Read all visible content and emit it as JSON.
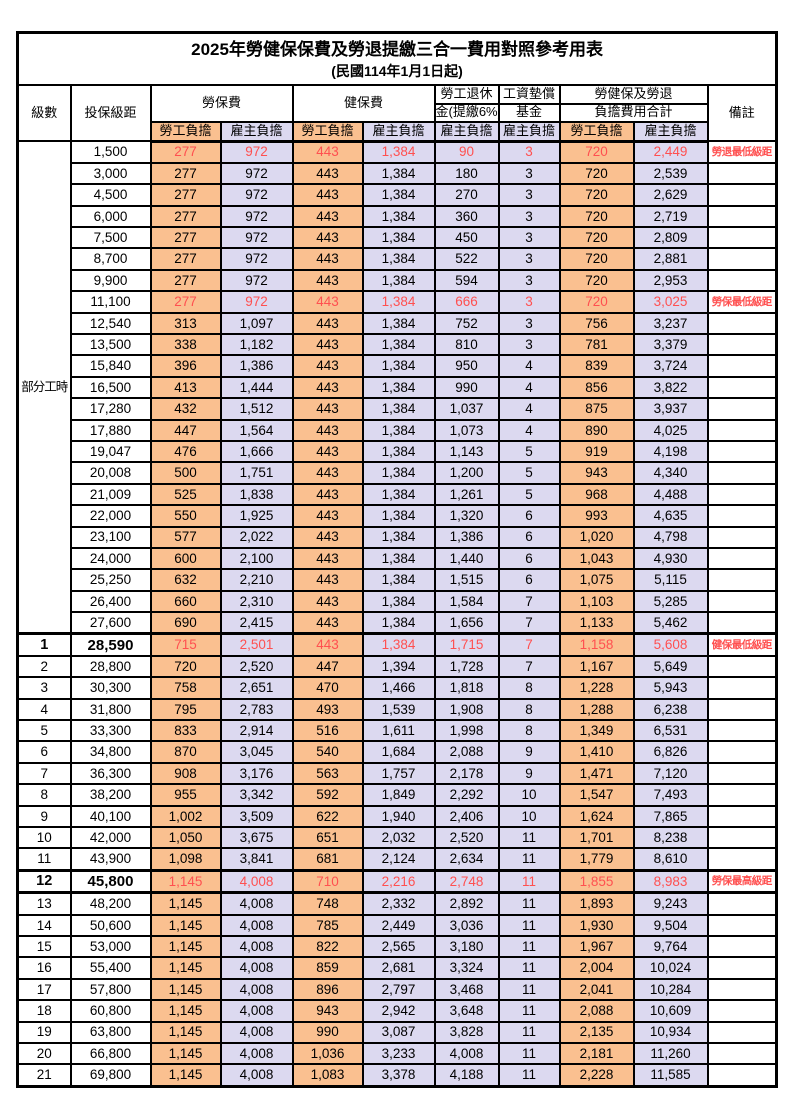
{
  "title": "2025年勞健保保費及勞退提繳三合一費用對照參考用表",
  "subtitle": "(民國114年1月1日起)",
  "header": {
    "level": "級數",
    "salary_bracket": "投保級距",
    "labor_insurance": "勞保費",
    "health_insurance": "健保費",
    "pension_line1": "勞工退休",
    "pension_line2": "金(提繳6%)",
    "wage_fund_line1": "工資墊償",
    "wage_fund_line2": "基金",
    "total_line1": "勞健保及勞退",
    "total_line2": "負擔費用合計",
    "remark": "備註",
    "employee_label": "勞工負擔",
    "employer_label": "雇主負擔"
  },
  "part_time": {
    "label": "部分工時",
    "span": 23
  },
  "colors": {
    "employee_bg": "#FAC090",
    "employer_bg": "#DCD9F0",
    "highlight_text": "#FF5050",
    "border": "#000000"
  },
  "rows": [
    {
      "level": null,
      "salary": "1,500",
      "v": [
        "277",
        "972",
        "443",
        "1,384",
        "90",
        "3",
        "720",
        "2,449"
      ],
      "remark": "勞退最低級距",
      "red": true,
      "emph": false,
      "border": null
    },
    {
      "level": null,
      "salary": "3,000",
      "v": [
        "277",
        "972",
        "443",
        "1,384",
        "180",
        "3",
        "720",
        "2,539"
      ],
      "remark": "",
      "red": false,
      "emph": false,
      "border": null
    },
    {
      "level": null,
      "salary": "4,500",
      "v": [
        "277",
        "972",
        "443",
        "1,384",
        "270",
        "3",
        "720",
        "2,629"
      ],
      "remark": "",
      "red": false,
      "emph": false,
      "border": null
    },
    {
      "level": null,
      "salary": "6,000",
      "v": [
        "277",
        "972",
        "443",
        "1,384",
        "360",
        "3",
        "720",
        "2,719"
      ],
      "remark": "",
      "red": false,
      "emph": false,
      "border": null
    },
    {
      "level": null,
      "salary": "7,500",
      "v": [
        "277",
        "972",
        "443",
        "1,384",
        "450",
        "3",
        "720",
        "2,809"
      ],
      "remark": "",
      "red": false,
      "emph": false,
      "border": null
    },
    {
      "level": null,
      "salary": "8,700",
      "v": [
        "277",
        "972",
        "443",
        "1,384",
        "522",
        "3",
        "720",
        "2,881"
      ],
      "remark": "",
      "red": false,
      "emph": false,
      "border": null
    },
    {
      "level": null,
      "salary": "9,900",
      "v": [
        "277",
        "972",
        "443",
        "1,384",
        "594",
        "3",
        "720",
        "2,953"
      ],
      "remark": "",
      "red": false,
      "emph": false,
      "border": null
    },
    {
      "level": null,
      "salary": "11,100",
      "v": [
        "277",
        "972",
        "443",
        "1,384",
        "666",
        "3",
        "720",
        "3,025"
      ],
      "remark": "勞保最低級距",
      "red": true,
      "emph": false,
      "border": null
    },
    {
      "level": null,
      "salary": "12,540",
      "v": [
        "313",
        "1,097",
        "443",
        "1,384",
        "752",
        "3",
        "756",
        "3,237"
      ],
      "remark": "",
      "red": false,
      "emph": false,
      "border": null
    },
    {
      "level": null,
      "salary": "13,500",
      "v": [
        "338",
        "1,182",
        "443",
        "1,384",
        "810",
        "3",
        "781",
        "3,379"
      ],
      "remark": "",
      "red": false,
      "emph": false,
      "border": null
    },
    {
      "level": null,
      "salary": "15,840",
      "v": [
        "396",
        "1,386",
        "443",
        "1,384",
        "950",
        "4",
        "839",
        "3,724"
      ],
      "remark": "",
      "red": false,
      "emph": false,
      "border": null
    },
    {
      "level": null,
      "salary": "16,500",
      "v": [
        "413",
        "1,444",
        "443",
        "1,384",
        "990",
        "4",
        "856",
        "3,822"
      ],
      "remark": "",
      "red": false,
      "emph": false,
      "border": null
    },
    {
      "level": null,
      "salary": "17,280",
      "v": [
        "432",
        "1,512",
        "443",
        "1,384",
        "1,037",
        "4",
        "875",
        "3,937"
      ],
      "remark": "",
      "red": false,
      "emph": false,
      "border": null
    },
    {
      "level": null,
      "salary": "17,880",
      "v": [
        "447",
        "1,564",
        "443",
        "1,384",
        "1,073",
        "4",
        "890",
        "4,025"
      ],
      "remark": "",
      "red": false,
      "emph": false,
      "border": null
    },
    {
      "level": null,
      "salary": "19,047",
      "v": [
        "476",
        "1,666",
        "443",
        "1,384",
        "1,143",
        "5",
        "919",
        "4,198"
      ],
      "remark": "",
      "red": false,
      "emph": false,
      "border": null
    },
    {
      "level": null,
      "salary": "20,008",
      "v": [
        "500",
        "1,751",
        "443",
        "1,384",
        "1,200",
        "5",
        "943",
        "4,340"
      ],
      "remark": "",
      "red": false,
      "emph": false,
      "border": null
    },
    {
      "level": null,
      "salary": "21,009",
      "v": [
        "525",
        "1,838",
        "443",
        "1,384",
        "1,261",
        "5",
        "968",
        "4,488"
      ],
      "remark": "",
      "red": false,
      "emph": false,
      "border": null
    },
    {
      "level": null,
      "salary": "22,000",
      "v": [
        "550",
        "1,925",
        "443",
        "1,384",
        "1,320",
        "6",
        "993",
        "4,635"
      ],
      "remark": "",
      "red": false,
      "emph": false,
      "border": null
    },
    {
      "level": null,
      "salary": "23,100",
      "v": [
        "577",
        "2,022",
        "443",
        "1,384",
        "1,386",
        "6",
        "1,020",
        "4,798"
      ],
      "remark": "",
      "red": false,
      "emph": false,
      "border": null
    },
    {
      "level": null,
      "salary": "24,000",
      "v": [
        "600",
        "2,100",
        "443",
        "1,384",
        "1,440",
        "6",
        "1,043",
        "4,930"
      ],
      "remark": "",
      "red": false,
      "emph": false,
      "border": null
    },
    {
      "level": null,
      "salary": "25,250",
      "v": [
        "632",
        "2,210",
        "443",
        "1,384",
        "1,515",
        "6",
        "1,075",
        "5,115"
      ],
      "remark": "",
      "red": false,
      "emph": false,
      "border": null
    },
    {
      "level": null,
      "salary": "26,400",
      "v": [
        "660",
        "2,310",
        "443",
        "1,384",
        "1,584",
        "7",
        "1,103",
        "5,285"
      ],
      "remark": "",
      "red": false,
      "emph": false,
      "border": null
    },
    {
      "level": null,
      "salary": "27,600",
      "v": [
        "690",
        "2,415",
        "443",
        "1,384",
        "1,656",
        "7",
        "1,133",
        "5,462"
      ],
      "remark": "",
      "red": false,
      "emph": false,
      "border": null
    },
    {
      "level": "1",
      "salary": "28,590",
      "v": [
        "715",
        "2,501",
        "443",
        "1,384",
        "1,715",
        "7",
        "1,158",
        "5,608"
      ],
      "remark": "健保最低級距",
      "red": true,
      "emph": true,
      "border": "top"
    },
    {
      "level": "2",
      "salary": "28,800",
      "v": [
        "720",
        "2,520",
        "447",
        "1,394",
        "1,728",
        "7",
        "1,167",
        "5,649"
      ],
      "remark": "",
      "red": false,
      "emph": false,
      "border": null
    },
    {
      "level": "3",
      "salary": "30,300",
      "v": [
        "758",
        "2,651",
        "470",
        "1,466",
        "1,818",
        "8",
        "1,228",
        "5,943"
      ],
      "remark": "",
      "red": false,
      "emph": false,
      "border": null
    },
    {
      "level": "4",
      "salary": "31,800",
      "v": [
        "795",
        "2,783",
        "493",
        "1,539",
        "1,908",
        "8",
        "1,288",
        "6,238"
      ],
      "remark": "",
      "red": false,
      "emph": false,
      "border": null
    },
    {
      "level": "5",
      "salary": "33,300",
      "v": [
        "833",
        "2,914",
        "516",
        "1,611",
        "1,998",
        "8",
        "1,349",
        "6,531"
      ],
      "remark": "",
      "red": false,
      "emph": false,
      "border": null
    },
    {
      "level": "6",
      "salary": "34,800",
      "v": [
        "870",
        "3,045",
        "540",
        "1,684",
        "2,088",
        "9",
        "1,410",
        "6,826"
      ],
      "remark": "",
      "red": false,
      "emph": false,
      "border": null
    },
    {
      "level": "7",
      "salary": "36,300",
      "v": [
        "908",
        "3,176",
        "563",
        "1,757",
        "2,178",
        "9",
        "1,471",
        "7,120"
      ],
      "remark": "",
      "red": false,
      "emph": false,
      "border": null
    },
    {
      "level": "8",
      "salary": "38,200",
      "v": [
        "955",
        "3,342",
        "592",
        "1,849",
        "2,292",
        "10",
        "1,547",
        "7,493"
      ],
      "remark": "",
      "red": false,
      "emph": false,
      "border": null
    },
    {
      "level": "9",
      "salary": "40,100",
      "v": [
        "1,002",
        "3,509",
        "622",
        "1,940",
        "2,406",
        "10",
        "1,624",
        "7,865"
      ],
      "remark": "",
      "red": false,
      "emph": false,
      "border": null
    },
    {
      "level": "10",
      "salary": "42,000",
      "v": [
        "1,050",
        "3,675",
        "651",
        "2,032",
        "2,520",
        "11",
        "1,701",
        "8,238"
      ],
      "remark": "",
      "red": false,
      "emph": false,
      "border": null
    },
    {
      "level": "11",
      "salary": "43,900",
      "v": [
        "1,098",
        "3,841",
        "681",
        "2,124",
        "2,634",
        "11",
        "1,779",
        "8,610"
      ],
      "remark": "",
      "red": false,
      "emph": false,
      "border": null
    },
    {
      "level": "12",
      "salary": "45,800",
      "v": [
        "1,145",
        "4,008",
        "710",
        "2,216",
        "2,748",
        "11",
        "1,855",
        "8,983"
      ],
      "remark": "勞保最高級距",
      "red": true,
      "emph": true,
      "border": "both"
    },
    {
      "level": "13",
      "salary": "48,200",
      "v": [
        "1,145",
        "4,008",
        "748",
        "2,332",
        "2,892",
        "11",
        "1,893",
        "9,243"
      ],
      "remark": "",
      "red": false,
      "emph": false,
      "border": null
    },
    {
      "level": "14",
      "salary": "50,600",
      "v": [
        "1,145",
        "4,008",
        "785",
        "2,449",
        "3,036",
        "11",
        "1,930",
        "9,504"
      ],
      "remark": "",
      "red": false,
      "emph": false,
      "border": null
    },
    {
      "level": "15",
      "salary": "53,000",
      "v": [
        "1,145",
        "4,008",
        "822",
        "2,565",
        "3,180",
        "11",
        "1,967",
        "9,764"
      ],
      "remark": "",
      "red": false,
      "emph": false,
      "border": null
    },
    {
      "level": "16",
      "salary": "55,400",
      "v": [
        "1,145",
        "4,008",
        "859",
        "2,681",
        "3,324",
        "11",
        "2,004",
        "10,024"
      ],
      "remark": "",
      "red": false,
      "emph": false,
      "border": null
    },
    {
      "level": "17",
      "salary": "57,800",
      "v": [
        "1,145",
        "4,008",
        "896",
        "2,797",
        "3,468",
        "11",
        "2,041",
        "10,284"
      ],
      "remark": "",
      "red": false,
      "emph": false,
      "border": null
    },
    {
      "level": "18",
      "salary": "60,800",
      "v": [
        "1,145",
        "4,008",
        "943",
        "2,942",
        "3,648",
        "11",
        "2,088",
        "10,609"
      ],
      "remark": "",
      "red": false,
      "emph": false,
      "border": null
    },
    {
      "level": "19",
      "salary": "63,800",
      "v": [
        "1,145",
        "4,008",
        "990",
        "3,087",
        "3,828",
        "11",
        "2,135",
        "10,934"
      ],
      "remark": "",
      "red": false,
      "emph": false,
      "border": null
    },
    {
      "level": "20",
      "salary": "66,800",
      "v": [
        "1,145",
        "4,008",
        "1,036",
        "3,233",
        "4,008",
        "11",
        "2,181",
        "11,260"
      ],
      "remark": "",
      "red": false,
      "emph": false,
      "border": null
    },
    {
      "level": "21",
      "salary": "69,800",
      "v": [
        "1,145",
        "4,008",
        "1,083",
        "3,378",
        "4,188",
        "11",
        "2,228",
        "11,585"
      ],
      "remark": "",
      "red": false,
      "emph": false,
      "border": null
    }
  ]
}
